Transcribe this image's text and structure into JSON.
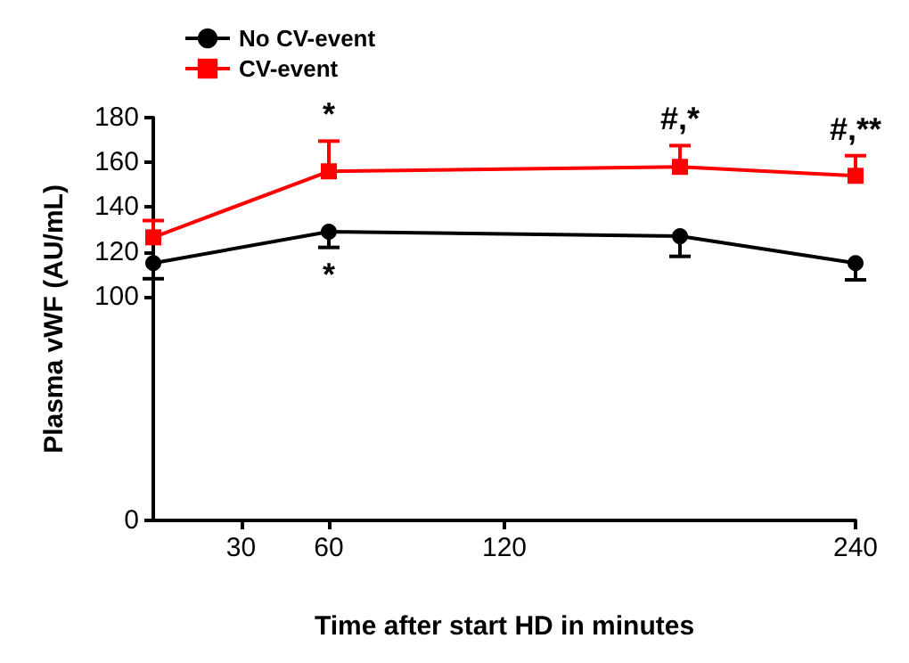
{
  "chart_data": {
    "type": "line",
    "xlabel": "Time after start HD in minutes",
    "ylabel": "Plasma vWF (AU/mL)",
    "x": [
      0,
      60,
      180,
      240
    ],
    "series": [
      {
        "name": "No CV-event",
        "color": "#000000",
        "marker": "circle",
        "values": [
          115,
          129,
          127,
          115
        ],
        "errors": [
          [
            108,
            115
          ],
          [
            122,
            129
          ],
          [
            118,
            127
          ],
          [
            107.5,
            115
          ]
        ]
      },
      {
        "name": "CV-event",
        "color": "#ff0000",
        "marker": "square",
        "values": [
          126.5,
          156,
          158,
          154
        ],
        "errors": [
          [
            126.5,
            134
          ],
          [
            156,
            169.5
          ],
          [
            158,
            167.5
          ],
          [
            154,
            163
          ]
        ]
      }
    ],
    "xlim": [
      0,
      240
    ],
    "xticks": [
      30,
      60,
      120,
      240
    ],
    "ylim": [
      0,
      180
    ],
    "yticks": [
      0,
      100,
      120,
      140,
      160,
      180
    ],
    "annotations": [
      "*",
      "*",
      "#,*",
      "#,**"
    ],
    "legend": "top left",
    "grid": false
  }
}
